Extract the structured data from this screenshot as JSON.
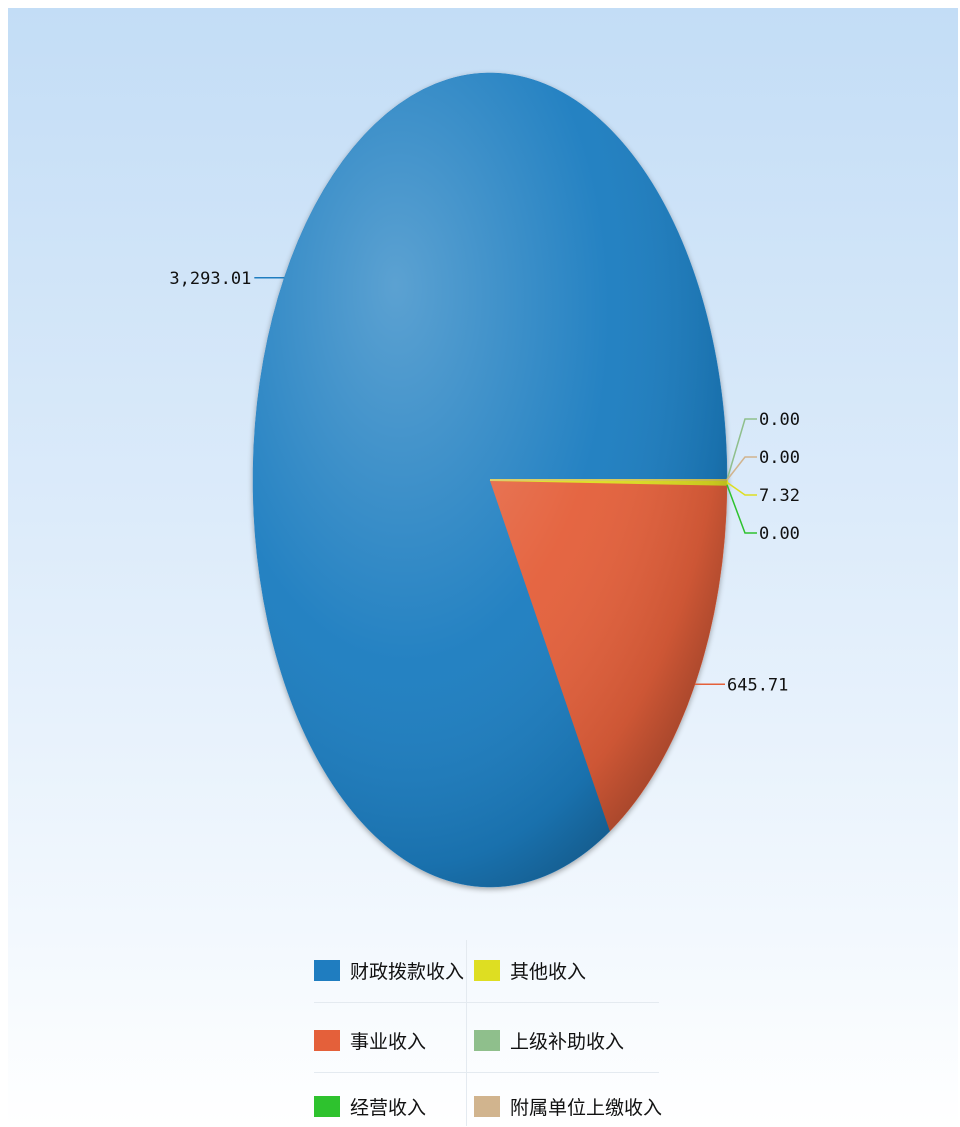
{
  "chart_data": {
    "type": "pie",
    "slices": [
      {
        "label": "财政拨款收入",
        "value": 3293.01,
        "value_text": "3,293.01",
        "color": "#1f7dc0"
      },
      {
        "label": "事业收入",
        "value": 645.71,
        "value_text": "645.71",
        "color": "#e4603a"
      },
      {
        "label": "经营收入",
        "value": 0.0,
        "value_text": "0.00",
        "color": "#2ec22e"
      },
      {
        "label": "其他收入",
        "value": 7.32,
        "value_text": "7.32",
        "color": "#dede22"
      },
      {
        "label": "上级补助收入",
        "value": 0.0,
        "value_text": "0.00",
        "color": "#8fbf8c"
      },
      {
        "label": "附属单位上缴收入",
        "value": 0.0,
        "value_text": "0.00",
        "color": "#d1b48e"
      }
    ],
    "legend": {
      "position": "bottom",
      "items": [
        {
          "label": "财政拨款收入",
          "color": "#1f7dc0"
        },
        {
          "label": "其他收入",
          "color": "#dede22"
        },
        {
          "label": "事业收入",
          "color": "#e4603a"
        },
        {
          "label": "上级补助收入",
          "color": "#8fbf8c"
        },
        {
          "label": "经营收入",
          "color": "#2ec22e"
        },
        {
          "label": "附属单位上缴收入",
          "color": "#d1b48e"
        }
      ]
    }
  }
}
